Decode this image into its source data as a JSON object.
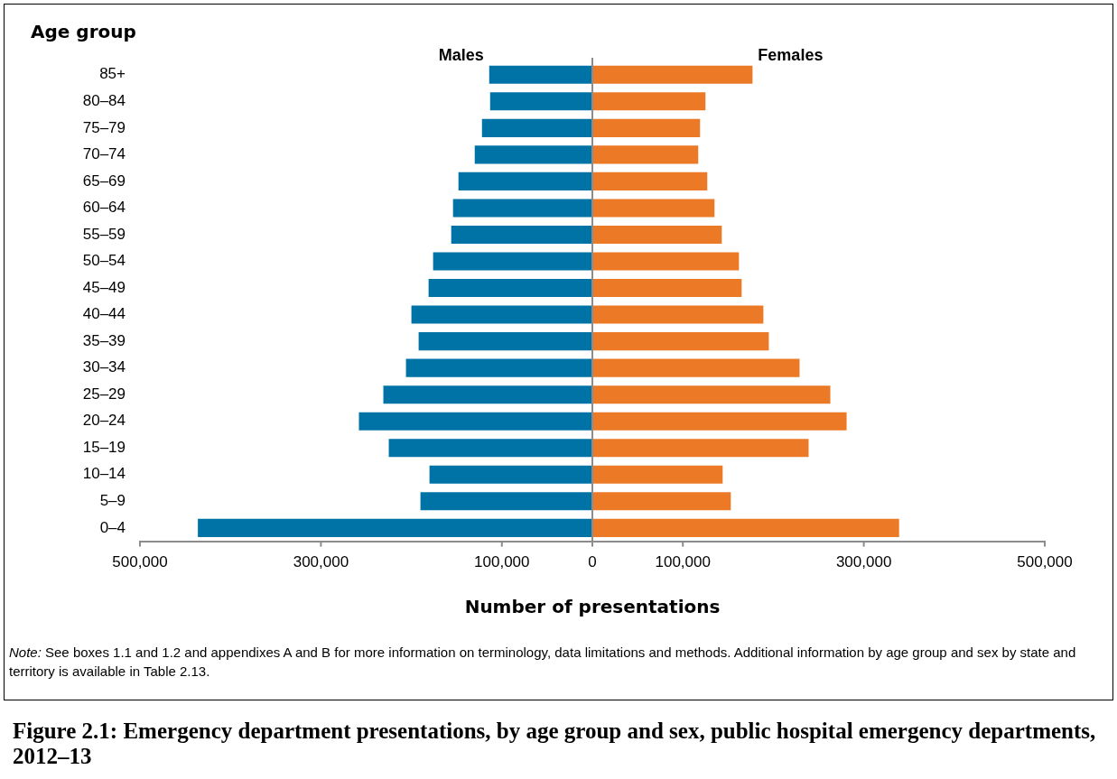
{
  "chart_data": {
    "type": "bar",
    "orientation": "horizontal",
    "title": "Figure 2.1: Emergency department presentations, by age group and sex, public hospital emergency departments, 2012–13",
    "ylabel": "Age group",
    "xlabel": "Number of presentations",
    "annotations": [
      "Note: See boxes 1.1 and 1.2 and appendixes A and B for more information on terminology, data limitations and methods. Additional information by age group and sex by state and territory is available in Table 2.13."
    ],
    "categories": [
      "85+",
      "80–84",
      "75–79",
      "70–74",
      "65–69",
      "60–64",
      "55–59",
      "50–54",
      "45–49",
      "40–44",
      "35–39",
      "30–34",
      "25–29",
      "20–24",
      "15–19",
      "10–14",
      "5–9",
      "0–4"
    ],
    "series": [
      {
        "name": "Males",
        "color": "#0073a6",
        "values": [
          -114000,
          -113000,
          -122000,
          -130000,
          -148000,
          -154000,
          -156000,
          -176000,
          -181000,
          -200000,
          -192000,
          -206000,
          -231000,
          -258000,
          -225000,
          -180000,
          -190000,
          -436000
        ]
      },
      {
        "name": "Females",
        "color": "#eb7926",
        "values": [
          177000,
          125000,
          119000,
          117000,
          127000,
          135000,
          143000,
          162000,
          165000,
          189000,
          195000,
          229000,
          263000,
          281000,
          239000,
          144000,
          153000,
          339000
        ]
      }
    ],
    "xlim": [
      -500000,
      500000
    ],
    "xticks": [
      {
        "value": -500000,
        "label": "500,000"
      },
      {
        "value": -300000,
        "label": "300,000"
      },
      {
        "value": -100000,
        "label": "100,000"
      },
      0,
      {
        "value": 100000,
        "label": "100,000"
      },
      {
        "value": 300000,
        "label": "300,000"
      },
      {
        "value": 500000,
        "label": "500,000"
      }
    ],
    "ref_lines": [
      {
        "axis": "x",
        "value": 0,
        "color": "#8c8c8c"
      }
    ],
    "stacked": true,
    "grid": false,
    "legend": false
  }
}
